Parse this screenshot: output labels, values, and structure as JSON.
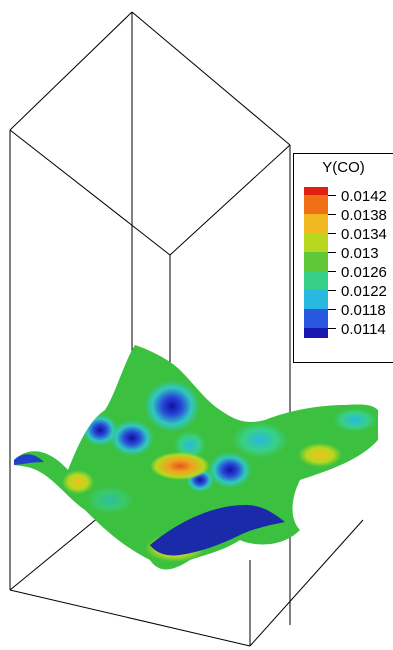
{
  "legend": {
    "title": "Y(CO)",
    "entries": [
      "0.0142",
      "0.0138",
      "0.0134",
      "0.013",
      "0.0126",
      "0.0122",
      "0.0118",
      "0.0114"
    ],
    "colors": [
      "#e02010",
      "#f07018",
      "#f0b820",
      "#b8d820",
      "#60c838",
      "#38d088",
      "#28b8e0",
      "#2858e0",
      "#1818b0"
    ]
  },
  "surface_colors": {
    "base": "#3cc040",
    "high": "#f2a020",
    "peak": "#e05818",
    "low": "#2848d8",
    "deep": "#1010a0",
    "mid": "#30c8c0"
  }
}
